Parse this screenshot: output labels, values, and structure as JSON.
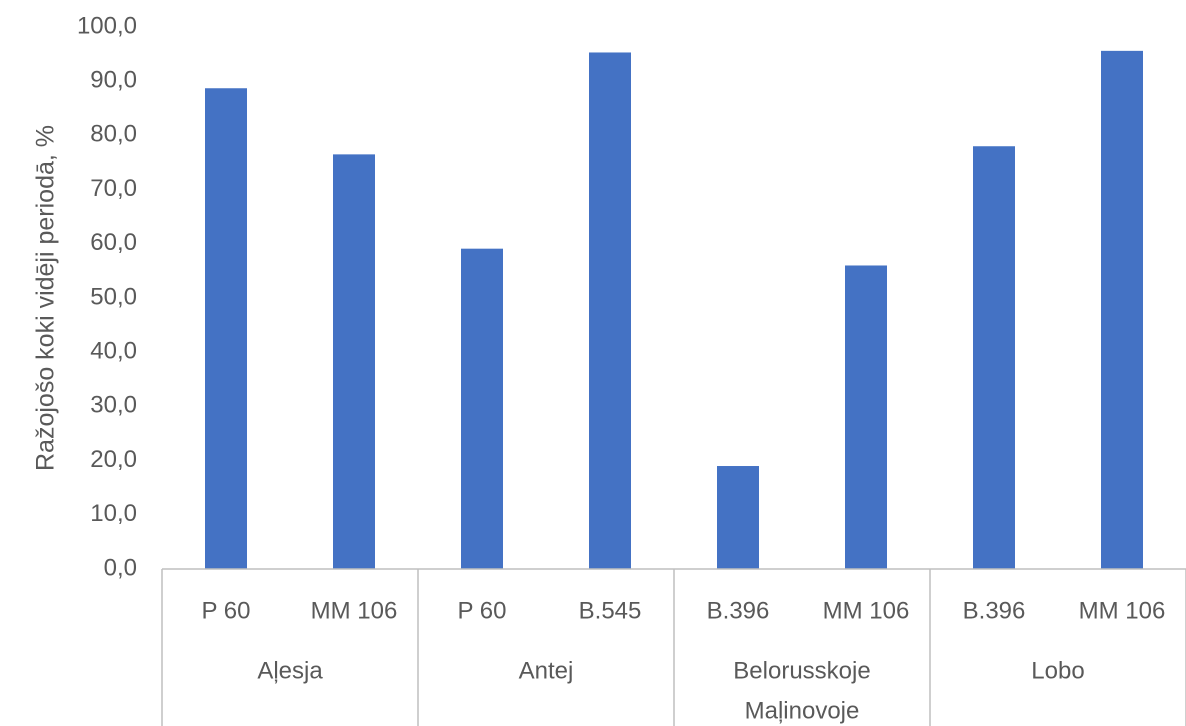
{
  "chart_data": {
    "type": "bar",
    "title": "",
    "xlabel": "",
    "ylabel": "Ražojošo koki vidēji periodā, %",
    "ylim": [
      0,
      100
    ],
    "yticks": [
      "0,0",
      "10,0",
      "20,0",
      "30,0",
      "40,0",
      "50,0",
      "60,0",
      "70,0",
      "80,0",
      "90,0",
      "100,0"
    ],
    "grid": false,
    "legend": "none",
    "bar_color": "#4472c4",
    "groups": [
      {
        "name": "Aļesja",
        "categories": [
          "P 60",
          "MM 106"
        ],
        "values": [
          88.7,
          76.5
        ]
      },
      {
        "name": "Antej",
        "categories": [
          "P 60",
          "B.545"
        ],
        "values": [
          59.1,
          95.3
        ]
      },
      {
        "name": "Belorusskoje Maļinovoje",
        "name_lines": [
          "Belorusskoje",
          "Maļinovoje"
        ],
        "categories": [
          "B.396",
          "MM 106"
        ],
        "values": [
          19.0,
          56.0
        ]
      },
      {
        "name": "Lobo",
        "categories": [
          "B.396",
          "MM 106"
        ],
        "values": [
          78.0,
          95.6
        ]
      }
    ]
  }
}
